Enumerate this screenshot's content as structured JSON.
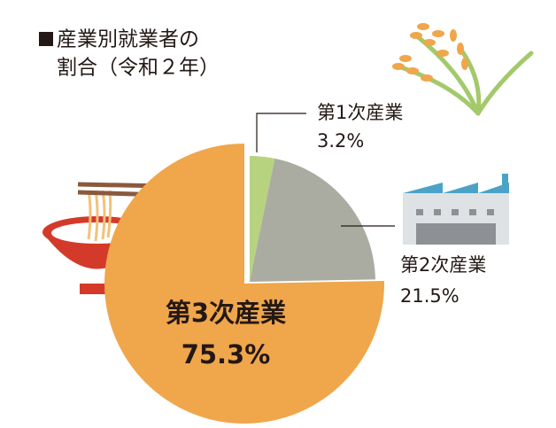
{
  "chart_data": {
    "type": "pie",
    "title": [
      "産業別就業者の",
      "割合（令和２年）"
    ],
    "categories": [
      "第1次産業",
      "第2次産業",
      "第3次産業"
    ],
    "values": [
      3.2,
      21.5,
      75.3
    ],
    "value_labels": [
      "3.2%",
      "21.5%",
      "75.3%"
    ],
    "colors": [
      "#b7d37f",
      "#aaaca2",
      "#f0a64b"
    ]
  }
}
